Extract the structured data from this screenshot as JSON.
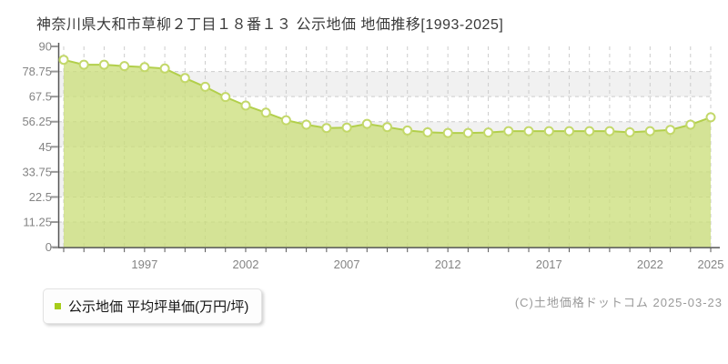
{
  "title": "神奈川県大和市草柳２丁目１８番１３ 公示地価 地価推移[1993-2025]",
  "legend": {
    "label": "公示地価 平均坪単価(万円/坪)",
    "marker_color": "#a6cc1a"
  },
  "footer": {
    "copyright": "(C)土地価格ドットコム 2025-03-23"
  },
  "chart_data": {
    "type": "area",
    "title": "神奈川県大和市草柳２丁目１８番１３ 公示地価 地価推移[1993-2025]",
    "series_name": "公示地価 平均坪単価(万円/坪)",
    "xlabel": "",
    "ylabel": "万円/坪",
    "x": [
      1993,
      1994,
      1995,
      1996,
      1997,
      1998,
      1999,
      2000,
      2001,
      2002,
      2003,
      2004,
      2005,
      2006,
      2007,
      2008,
      2009,
      2010,
      2011,
      2012,
      2013,
      2014,
      2015,
      2016,
      2017,
      2018,
      2019,
      2020,
      2021,
      2022,
      2023,
      2024,
      2025
    ],
    "values": [
      84.0,
      81.8,
      81.8,
      81.2,
      80.7,
      80.1,
      75.8,
      71.9,
      67.3,
      63.5,
      60.3,
      56.9,
      54.9,
      53.4,
      53.6,
      55.3,
      53.8,
      52.3,
      51.5,
      51.2,
      51.2,
      51.4,
      52.0,
      52.0,
      52.0,
      52.0,
      52.0,
      52.0,
      51.5,
      52.0,
      52.6,
      54.9,
      58.2
    ],
    "ylim": [
      0,
      90
    ],
    "ytick_labels": [
      "0",
      "11.25",
      "22.5",
      "33.75",
      "45",
      "56.25",
      "67.5",
      "78.75",
      "90"
    ],
    "xtick_labeled_years": [
      1997,
      2002,
      2007,
      2012,
      2017,
      2022,
      2025
    ],
    "grid": "dashed",
    "legend_position": "bottom-left",
    "colors": {
      "area_fill": "#cade77",
      "line": "#b2cf4b",
      "marker_fill": "#ffffff",
      "marker_stroke": "#c3d86a",
      "grid": "#cccccc",
      "band": "#f1f1f1",
      "plot_bg": "#ffffff",
      "axis": "#555555",
      "y_tick": "#999999",
      "tick_label": "#848484"
    }
  }
}
